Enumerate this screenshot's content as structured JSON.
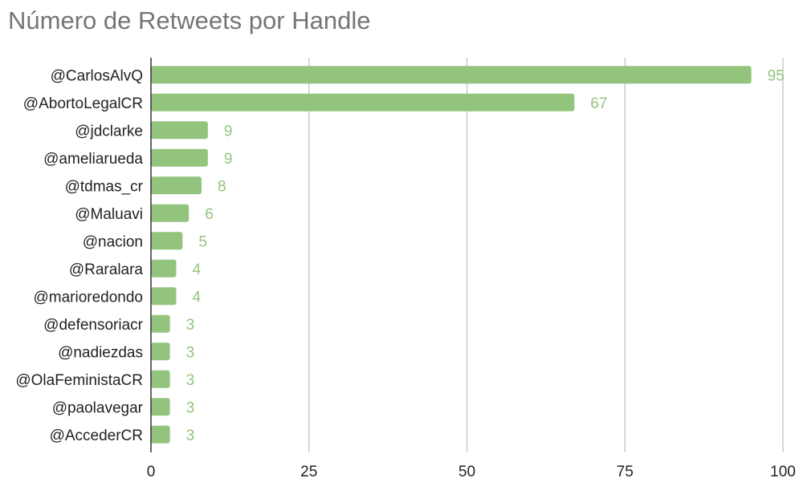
{
  "chart_data": {
    "type": "bar",
    "orientation": "horizontal",
    "title": "Número de Retweets por Handle",
    "xlabel": "",
    "ylabel": "",
    "categories": [
      "@CarlosAlvQ",
      "@AbortoLegalCR",
      "@jdclarke",
      "@ameliarueda",
      "@tdmas_cr",
      "@Maluavi",
      "@nacion",
      "@Raralara",
      "@marioredondo",
      "@defensoriacr",
      "@nadiezdas",
      "@OlaFeministaCR",
      "@paolavegar",
      "@AccederCR"
    ],
    "values": [
      95,
      67,
      9,
      9,
      8,
      6,
      5,
      4,
      4,
      3,
      3,
      3,
      3,
      3
    ],
    "xlim": [
      0,
      100
    ],
    "xticks": [
      0,
      25,
      50,
      75,
      100
    ],
    "grid": true,
    "legend": "none",
    "colors": {
      "bar": "#93c47d",
      "data_label": "#93c47d",
      "grid": "#cccccc",
      "axis": "#333333",
      "title": "#757575"
    }
  }
}
